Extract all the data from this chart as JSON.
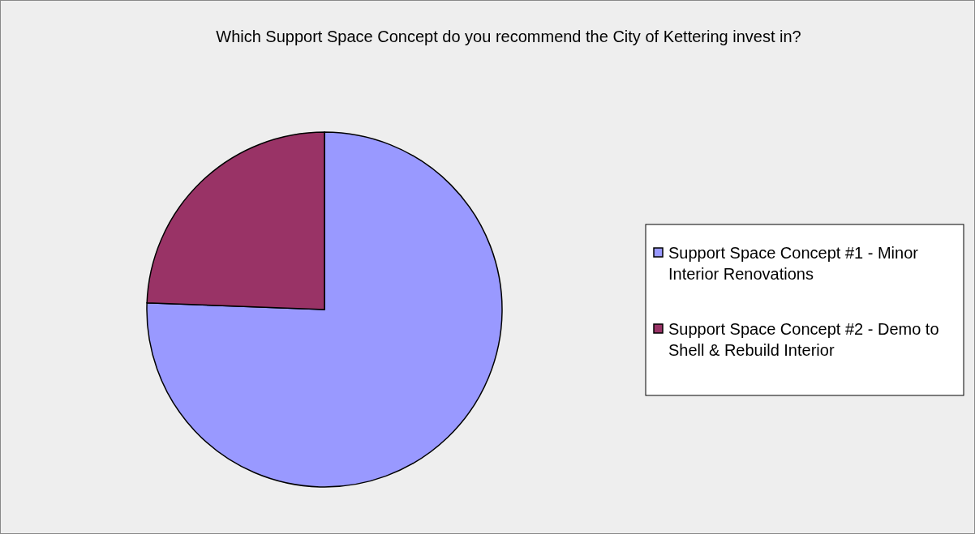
{
  "chart_data": {
    "type": "pie",
    "title": "Which Support Space Concept do you recommend the City of Kettering invest in?",
    "categories": [
      "Support Space Concept #1 - Minor Interior Renovations",
      "Support Space Concept #2 - Demo to Shell & Rebuild Interior"
    ],
    "values": [
      75.6,
      24.4
    ],
    "colors": [
      "#9999ff",
      "#993366"
    ],
    "legend": "right"
  }
}
